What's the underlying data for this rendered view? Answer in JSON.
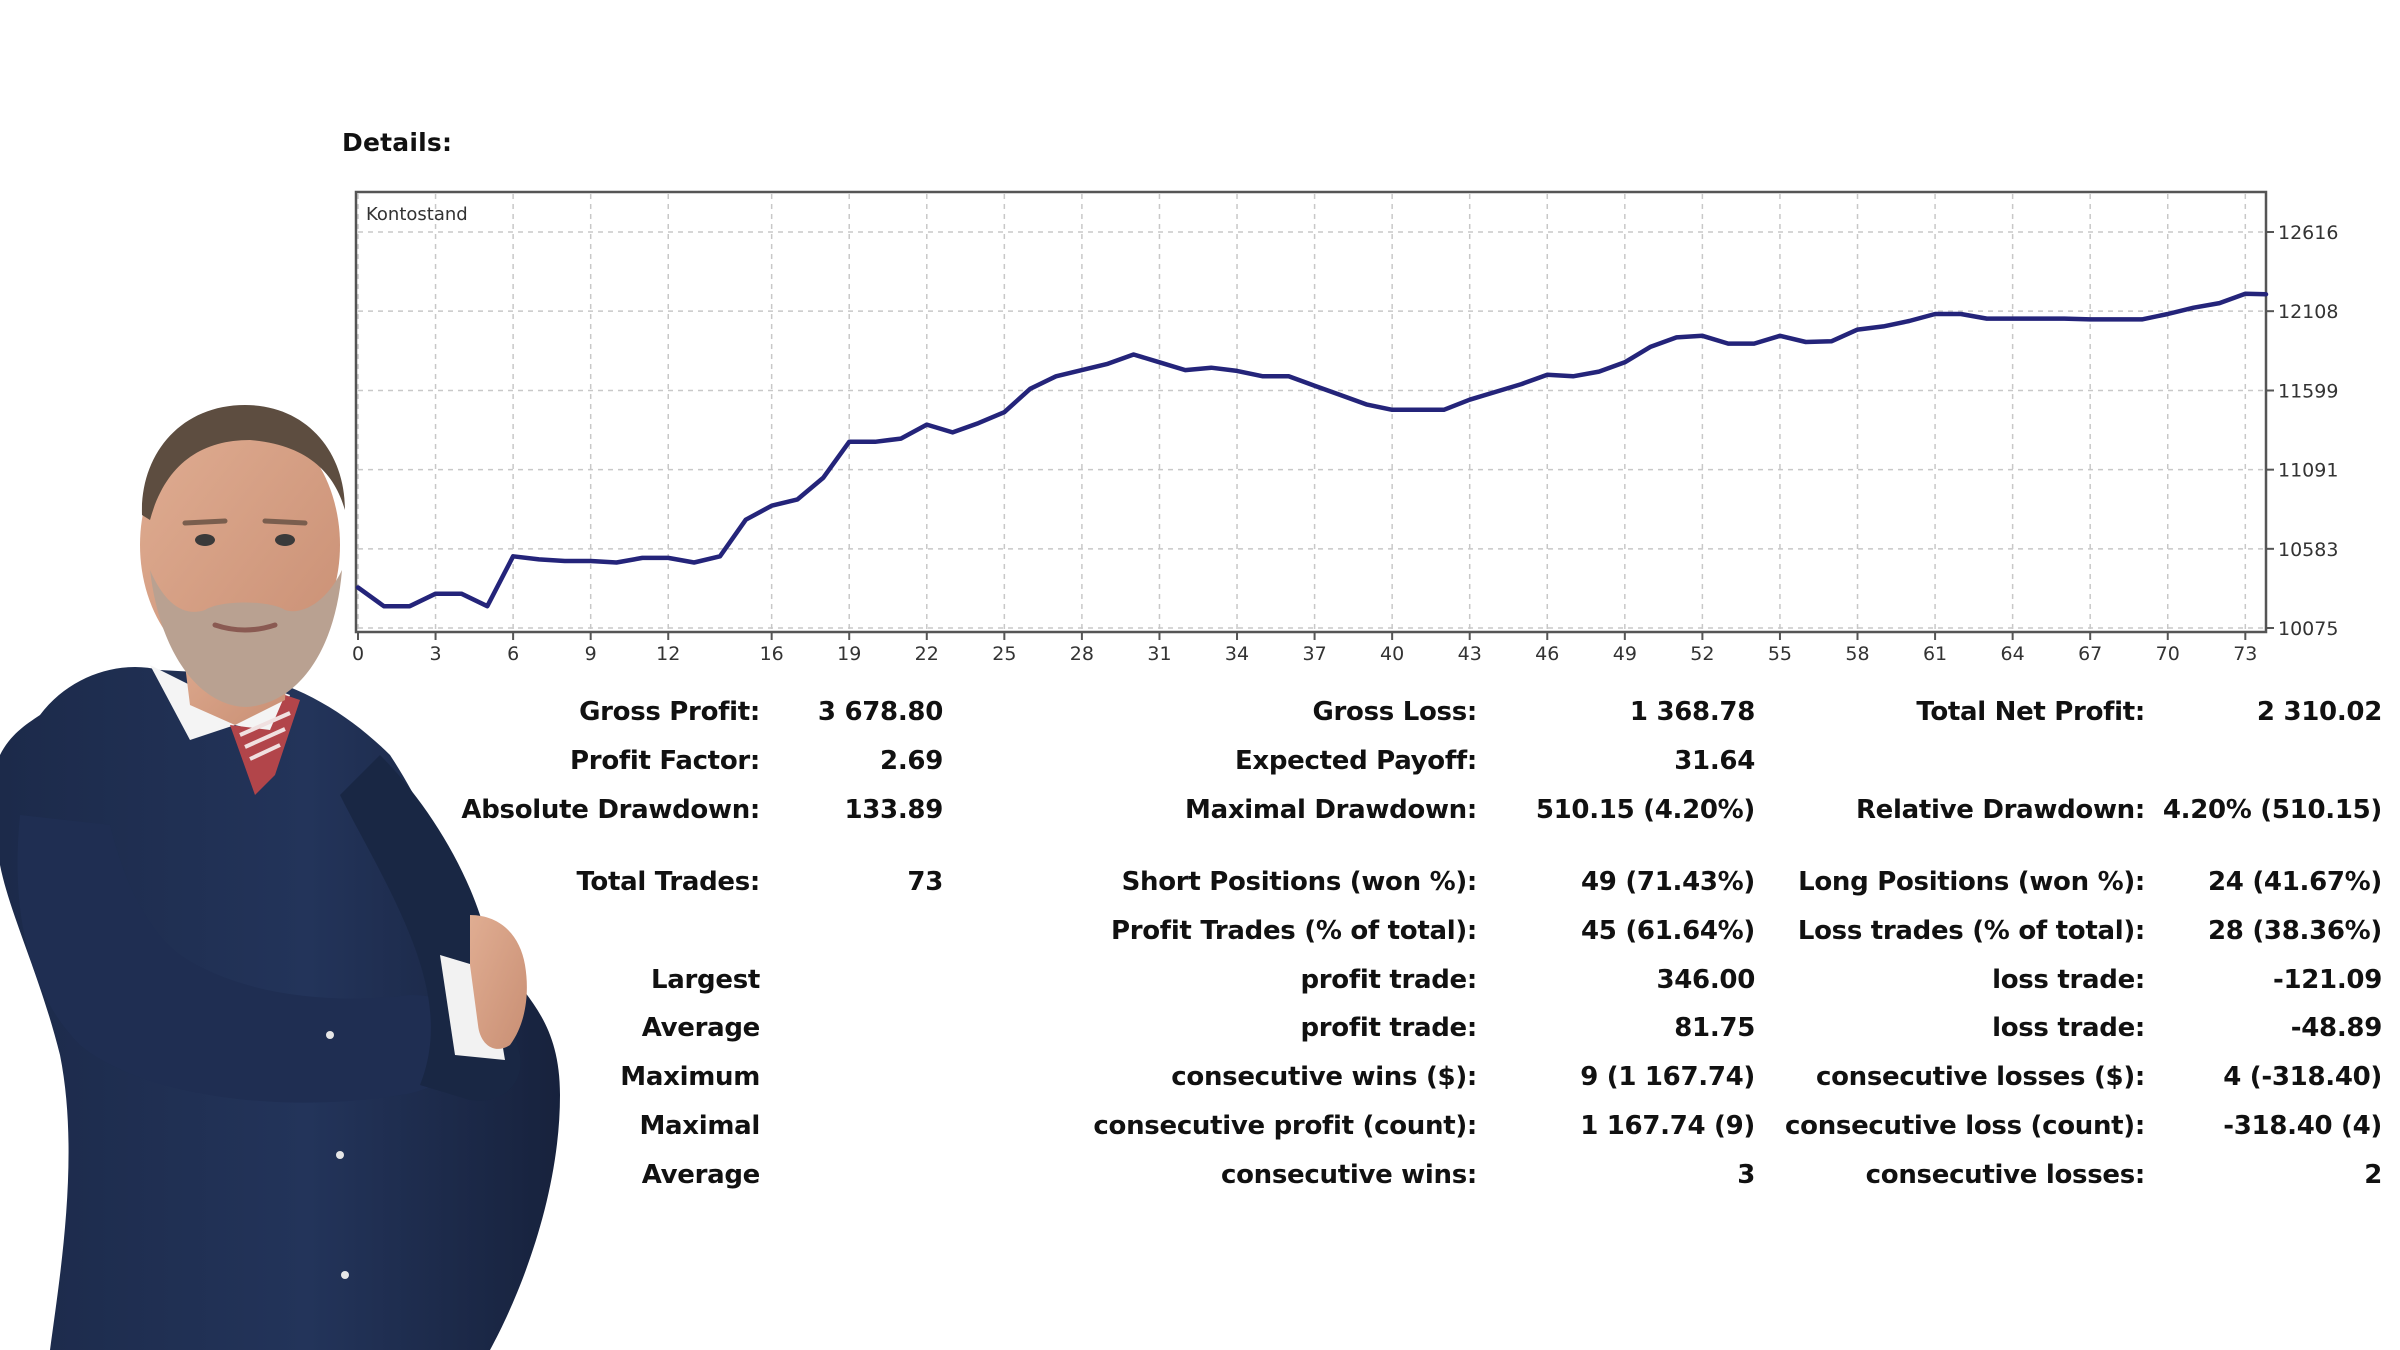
{
  "details_heading": "Details:",
  "chart_data": {
    "type": "line",
    "title": "Kontostand",
    "xlabel": "",
    "ylabel": "",
    "x_ticks": [
      0,
      3,
      6,
      9,
      12,
      16,
      19,
      22,
      25,
      28,
      31,
      34,
      37,
      40,
      43,
      46,
      49,
      52,
      55,
      58,
      61,
      64,
      67,
      70,
      73
    ],
    "y_ticks": [
      10075,
      10583,
      11091,
      11599,
      12108,
      12616
    ],
    "xlim": [
      0,
      73.8
    ],
    "ylim": [
      10075,
      12616
    ],
    "y_axis_position": "right",
    "grid": true,
    "line_color": "#24247a",
    "series": [
      {
        "name": "",
        "x": [
          0,
          1,
          2,
          3,
          4,
          5,
          6,
          7,
          8,
          9,
          10,
          11,
          12,
          13,
          14,
          15,
          16,
          17,
          18,
          19,
          20,
          21,
          22,
          23,
          24,
          25,
          26,
          27,
          28,
          29,
          30,
          31,
          32,
          33,
          34,
          35,
          36,
          37,
          38,
          39,
          40,
          41,
          42,
          43,
          44,
          45,
          46,
          47,
          48,
          49,
          50,
          51,
          52,
          53,
          54,
          55,
          56,
          57,
          58,
          59,
          60,
          61,
          62,
          63,
          64,
          65,
          66,
          67,
          68,
          69,
          70,
          71,
          72,
          73,
          73.8
        ],
        "values": [
          10335,
          10215,
          10215,
          10295,
          10295,
          10215,
          10535,
          10515,
          10505,
          10505,
          10495,
          10525,
          10525,
          10495,
          10535,
          10770,
          10860,
          10900,
          11040,
          11270,
          11270,
          11290,
          11380,
          11330,
          11390,
          11460,
          11610,
          11690,
          11730,
          11770,
          11830,
          11780,
          11730,
          11745,
          11725,
          11690,
          11690,
          11630,
          11570,
          11510,
          11475,
          11475,
          11475,
          11540,
          11590,
          11640,
          11700,
          11690,
          11720,
          11780,
          11880,
          11940,
          11950,
          11900,
          11900,
          11950,
          11910,
          11915,
          11990,
          12010,
          12045,
          12090,
          12090,
          12060,
          12060,
          12060,
          12060,
          12055,
          12055,
          12055,
          12090,
          12130,
          12160,
          12220,
          12216
        ]
      }
    ]
  },
  "stats": {
    "gross_profit_label": "Gross Profit:",
    "gross_profit_value": "3 678.80",
    "gross_loss_label": "Gross Loss:",
    "gross_loss_value": "1 368.78",
    "total_net_profit_label": "Total Net Profit:",
    "total_net_profit_value": "2 310.02",
    "profit_factor_label": "Profit Factor:",
    "profit_factor_value": "2.69",
    "expected_payoff_label": "Expected Payoff:",
    "expected_payoff_value": "31.64",
    "absolute_drawdown_label": "Absolute Drawdown:",
    "absolute_drawdown_value": "133.89",
    "maximal_drawdown_label": "Maximal Drawdown:",
    "maximal_drawdown_value": "510.15 (4.20%)",
    "relative_drawdown_label": "Relative Drawdown:",
    "relative_drawdown_value": "4.20% (510.15)",
    "total_trades_label": "Total Trades:",
    "total_trades_value": "73",
    "short_positions_label": "Short Positions (won %):",
    "short_positions_value": "49 (71.43%)",
    "long_positions_label": "Long Positions (won %):",
    "long_positions_value": "24 (41.67%)",
    "profit_trades_label": "Profit Trades (% of total):",
    "profit_trades_value": "45 (61.64%)",
    "loss_trades_label": "Loss trades (% of total):",
    "loss_trades_value": "28 (38.36%)",
    "largest_label": "Largest",
    "largest_profit_label": "profit trade:",
    "largest_profit_value": "346.00",
    "largest_loss_label": "loss trade:",
    "largest_loss_value": "-121.09",
    "average_label": "Average",
    "average_profit_label": "profit trade:",
    "average_profit_value": "81.75",
    "average_loss_label": "loss trade:",
    "average_loss_value": "-48.89",
    "maximum_label": "Maximum",
    "max_consec_wins_label": "consecutive wins ($):",
    "max_consec_wins_value": "9 (1 167.74)",
    "max_consec_losses_label": "consecutive losses ($):",
    "max_consec_losses_value": "4 (-318.40)",
    "maximal_label": "Maximal",
    "maximal_consec_profit_label": "consecutive profit (count):",
    "maximal_consec_profit_value": "1 167.74 (9)",
    "maximal_consec_loss_label": "consecutive loss (count):",
    "maximal_consec_loss_value": "-318.40 (4)",
    "average2_label": "Average",
    "avg_consec_wins_label": "consecutive wins:",
    "avg_consec_wins_value": "3",
    "avg_consec_losses_label": "consecutive losses:",
    "avg_consec_losses_value": "2"
  }
}
